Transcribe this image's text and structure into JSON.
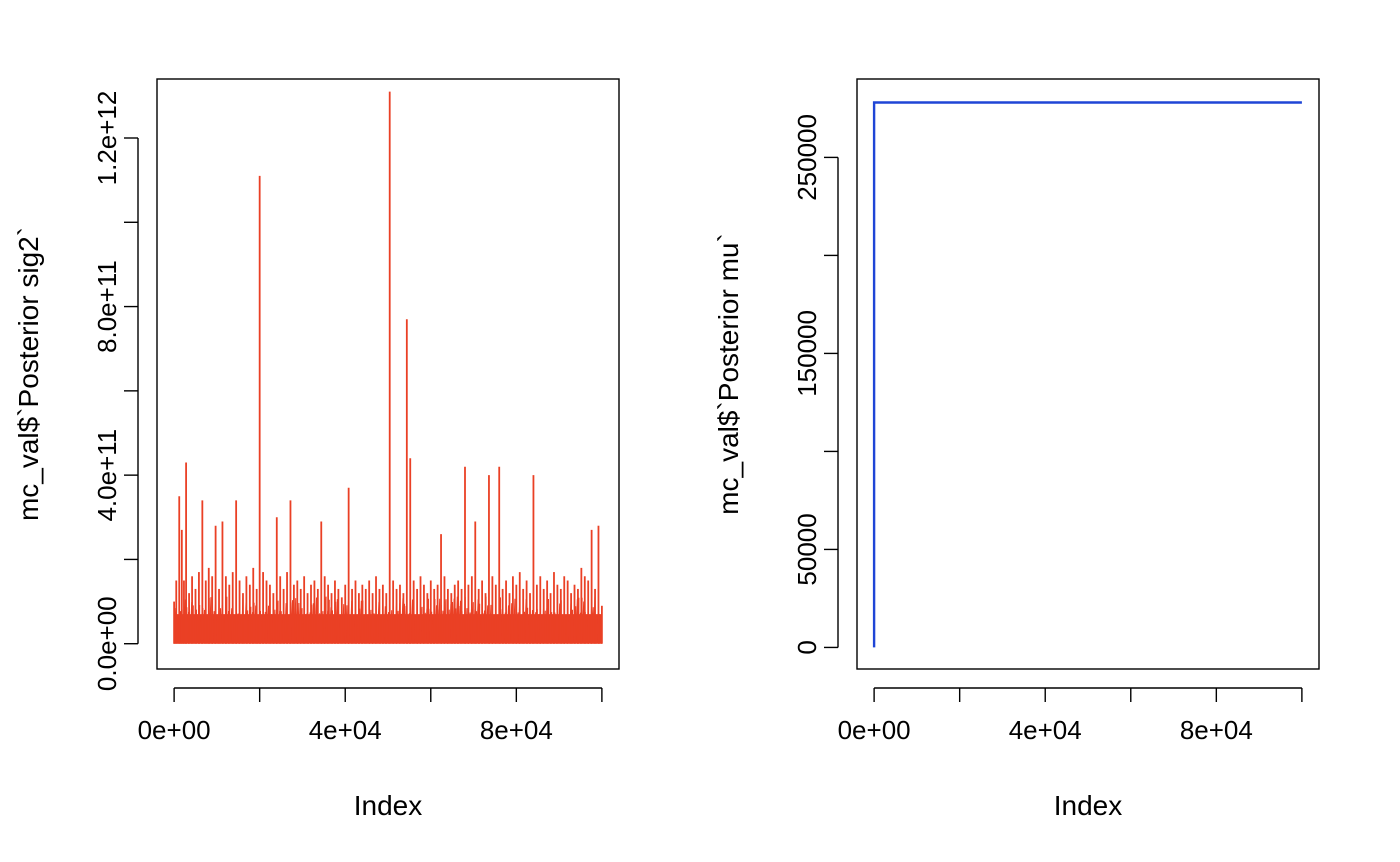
{
  "chart_data": [
    {
      "type": "line",
      "title": "",
      "xlabel": "Index",
      "ylabel": "mc_val$`Posterior sig2`",
      "xlim": [
        -4000,
        104000
      ],
      "ylim": [
        -60000000000.0,
        1340000000000.0
      ],
      "x_ticks": [
        0,
        20000,
        40000,
        60000,
        80000,
        100000
      ],
      "x_tick_labels": [
        "0e+00",
        "",
        "4e+04",
        "",
        "8e+04",
        ""
      ],
      "y_ticks": [
        0,
        200000000000.0,
        400000000000.0,
        600000000000.0,
        800000000000.0,
        1000000000000.0,
        1200000000000.0
      ],
      "y_tick_labels": [
        "0.0e+00",
        "",
        "4.0e+11",
        "",
        "8.0e+11",
        "",
        "1.2e+12"
      ],
      "series": [
        {
          "color": "#ea4025",
          "baseline_band": [
            0,
            90000000000.0
          ],
          "x": [
            0,
            500,
            1200,
            1800,
            2300,
            2800,
            3500,
            4200,
            5000,
            5800,
            6600,
            7400,
            8100,
            8900,
            9700,
            10500,
            11300,
            12100,
            12900,
            13700,
            14500,
            15300,
            16100,
            16900,
            17700,
            18500,
            19300,
            20000,
            20800,
            21600,
            22400,
            23200,
            24000,
            24800,
            25600,
            26400,
            27200,
            28000,
            28800,
            29600,
            30400,
            31200,
            32000,
            32800,
            33600,
            34400,
            35200,
            36000,
            36800,
            37600,
            38400,
            39200,
            40000,
            40800,
            41600,
            42400,
            43200,
            44000,
            44800,
            45600,
            46400,
            47200,
            48000,
            48800,
            49600,
            50400,
            51200,
            52000,
            52800,
            53600,
            54400,
            55200,
            56000,
            56800,
            57600,
            58400,
            59200,
            60000,
            60800,
            61600,
            62400,
            63200,
            64000,
            64800,
            65600,
            66400,
            67200,
            68000,
            68800,
            69600,
            70400,
            71200,
            72000,
            72800,
            73600,
            74400,
            75200,
            76000,
            76800,
            77600,
            78400,
            79200,
            80000,
            80800,
            81600,
            82400,
            83200,
            84000,
            84800,
            85600,
            86400,
            87200,
            88000,
            88800,
            89600,
            90400,
            91200,
            92000,
            92800,
            93600,
            94400,
            95200,
            96000,
            96800,
            97600,
            98400,
            99200,
            100000
          ],
          "y": [
            100000000000.0,
            150000000000.0,
            350000000000.0,
            270000000000.0,
            150000000000.0,
            430000000000.0,
            120000000000.0,
            160000000000.0,
            130000000000.0,
            170000000000.0,
            340000000000.0,
            150000000000.0,
            180000000000.0,
            160000000000.0,
            280000000000.0,
            130000000000.0,
            290000000000.0,
            160000000000.0,
            140000000000.0,
            170000000000.0,
            340000000000.0,
            150000000000.0,
            120000000000.0,
            160000000000.0,
            140000000000.0,
            180000000000.0,
            130000000000.0,
            1110000000000.0,
            170000000000.0,
            150000000000.0,
            140000000000.0,
            120000000000.0,
            300000000000.0,
            160000000000.0,
            130000000000.0,
            170000000000.0,
            340000000000.0,
            140000000000.0,
            150000000000.0,
            130000000000.0,
            160000000000.0,
            120000000000.0,
            140000000000.0,
            150000000000.0,
            130000000000.0,
            290000000000.0,
            160000000000.0,
            140000000000.0,
            120000000000.0,
            150000000000.0,
            130000000000.0,
            110000000000.0,
            140000000000.0,
            370000000000.0,
            130000000000.0,
            150000000000.0,
            120000000000.0,
            140000000000.0,
            130000000000.0,
            150000000000.0,
            120000000000.0,
            160000000000.0,
            130000000000.0,
            140000000000.0,
            120000000000.0,
            1310000000000.0,
            150000000000.0,
            130000000000.0,
            140000000000.0,
            120000000000.0,
            770000000000.0,
            440000000000.0,
            150000000000.0,
            130000000000.0,
            160000000000.0,
            140000000000.0,
            120000000000.0,
            150000000000.0,
            130000000000.0,
            140000000000.0,
            260000000000.0,
            160000000000.0,
            130000000000.0,
            120000000000.0,
            140000000000.0,
            150000000000.0,
            130000000000.0,
            420000000000.0,
            140000000000.0,
            160000000000.0,
            290000000000.0,
            130000000000.0,
            150000000000.0,
            120000000000.0,
            400000000000.0,
            160000000000.0,
            140000000000.0,
            420000000000.0,
            130000000000.0,
            150000000000.0,
            120000000000.0,
            160000000000.0,
            140000000000.0,
            170000000000.0,
            130000000000.0,
            150000000000.0,
            120000000000.0,
            400000000000.0,
            140000000000.0,
            160000000000.0,
            130000000000.0,
            150000000000.0,
            120000000000.0,
            170000000000.0,
            140000000000.0,
            130000000000.0,
            160000000000.0,
            150000000000.0,
            120000000000.0,
            140000000000.0,
            130000000000.0,
            180000000000.0,
            160000000000.0,
            150000000000.0,
            270000000000.0,
            130000000000.0,
            280000000000.0,
            90000000000.0
          ]
        }
      ]
    },
    {
      "type": "line",
      "title": "",
      "xlabel": "Index",
      "ylabel": "mc_val$`Posterior mu`",
      "xlim": [
        -4000,
        104000
      ],
      "ylim": [
        -11000,
        290000
      ],
      "x_ticks": [
        0,
        20000,
        40000,
        60000,
        80000,
        100000
      ],
      "x_tick_labels": [
        "0e+00",
        "",
        "4e+04",
        "",
        "8e+04",
        ""
      ],
      "y_ticks": [
        0,
        50000,
        100000,
        150000,
        200000,
        250000
      ],
      "y_tick_labels": [
        "0",
        "50000",
        "",
        "150000",
        "",
        "250000"
      ],
      "series": [
        {
          "color": "#1f45d6",
          "x": [
            0,
            1,
            100000
          ],
          "y": [
            0,
            278000,
            278000
          ]
        }
      ]
    }
  ]
}
